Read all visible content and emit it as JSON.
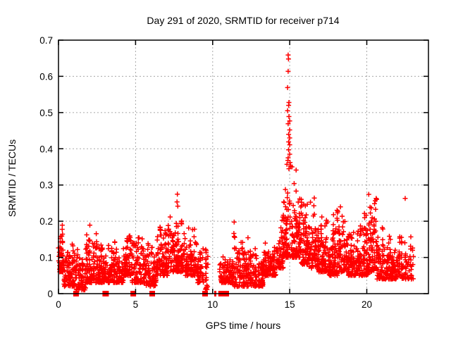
{
  "chart_data": {
    "type": "scatter",
    "title": "Day 291 of 2020, SRMTID for receiver p714",
    "xlabel": "GPS time / hours",
    "ylabel": "SRMTID / TECUs",
    "xlim": [
      0,
      24
    ],
    "ylim": [
      0,
      0.7
    ],
    "xticks": [
      0,
      5,
      10,
      15,
      20
    ],
    "yticks": [
      0,
      0.1,
      0.2,
      0.3,
      0.4,
      0.5,
      0.6,
      0.7
    ],
    "grid": true,
    "legend": "none",
    "marker": "plus",
    "marker_color": "#ff0000",
    "grid_color": "#a8a8a8",
    "axis_color": "#000000",
    "background": "#ffffff",
    "seed": 42,
    "skew": 1.6,
    "bands": [
      [
        0.0,
        0.35,
        55,
        0.06,
        0.22
      ],
      [
        0.35,
        1.15,
        95,
        0.02,
        0.16
      ],
      [
        1.15,
        1.75,
        70,
        0.01,
        0.13
      ],
      [
        1.75,
        2.65,
        115,
        0.03,
        0.2
      ],
      [
        2.65,
        3.45,
        95,
        0.03,
        0.15
      ],
      [
        3.45,
        4.25,
        95,
        0.03,
        0.17
      ],
      [
        4.25,
        4.75,
        70,
        0.05,
        0.22
      ],
      [
        4.75,
        5.65,
        100,
        0.03,
        0.17
      ],
      [
        5.65,
        6.35,
        85,
        0.02,
        0.16
      ],
      [
        6.35,
        7.15,
        105,
        0.05,
        0.21
      ],
      [
        7.15,
        8.15,
        120,
        0.06,
        0.29
      ],
      [
        8.15,
        8.95,
        95,
        0.05,
        0.21
      ],
      [
        8.95,
        9.4,
        50,
        0.03,
        0.17
      ],
      [
        9.5,
        9.72,
        22,
        0.01,
        0.21
      ],
      [
        10.45,
        11.3,
        95,
        0.03,
        0.13
      ],
      [
        11.3,
        12.3,
        115,
        0.02,
        0.21
      ],
      [
        12.3,
        13.3,
        115,
        0.02,
        0.14
      ],
      [
        13.3,
        14.1,
        100,
        0.05,
        0.16
      ],
      [
        14.1,
        14.6,
        60,
        0.07,
        0.24
      ],
      [
        14.55,
        15.15,
        70,
        0.1,
        0.35
      ],
      [
        15.15,
        15.75,
        95,
        0.1,
        0.36
      ],
      [
        15.75,
        16.25,
        80,
        0.08,
        0.33
      ],
      [
        16.25,
        16.85,
        80,
        0.07,
        0.3
      ],
      [
        16.85,
        17.55,
        90,
        0.06,
        0.24
      ],
      [
        17.55,
        18.2,
        90,
        0.05,
        0.28
      ],
      [
        18.2,
        18.75,
        70,
        0.06,
        0.31
      ],
      [
        18.75,
        19.55,
        95,
        0.05,
        0.2
      ],
      [
        19.55,
        20.1,
        80,
        0.05,
        0.29
      ],
      [
        20.1,
        20.65,
        75,
        0.06,
        0.345
      ],
      [
        20.65,
        21.45,
        95,
        0.04,
        0.2
      ],
      [
        21.45,
        22.25,
        95,
        0.04,
        0.16
      ],
      [
        22.25,
        23.02,
        60,
        0.04,
        0.17
      ]
    ],
    "spike_points": [
      [
        14.9,
        0.659
      ],
      [
        14.92,
        0.648
      ],
      [
        14.9,
        0.614
      ],
      [
        14.86,
        0.569
      ],
      [
        14.95,
        0.528
      ],
      [
        14.93,
        0.52
      ],
      [
        14.86,
        0.505
      ],
      [
        14.95,
        0.489
      ],
      [
        15.0,
        0.477
      ],
      [
        14.9,
        0.469
      ],
      [
        15.0,
        0.452
      ],
      [
        14.93,
        0.44
      ],
      [
        15.0,
        0.43
      ],
      [
        14.93,
        0.419
      ],
      [
        15.0,
        0.411
      ],
      [
        14.93,
        0.397
      ],
      [
        15.0,
        0.385
      ],
      [
        14.9,
        0.375
      ],
      [
        14.88,
        0.368
      ],
      [
        15.02,
        0.362
      ],
      [
        14.82,
        0.357
      ],
      [
        15.06,
        0.353
      ],
      [
        15.15,
        0.35
      ],
      [
        14.95,
        0.345
      ]
    ],
    "outlier_points": [
      [
        22.49,
        0.263
      ]
    ],
    "zero_markers": [
      [
        1.14,
        8
      ],
      [
        3.06,
        9
      ],
      [
        4.85,
        8
      ],
      [
        6.08,
        8
      ],
      [
        9.51,
        8
      ],
      [
        10.17,
        3
      ],
      [
        10.55,
        8
      ],
      [
        10.66,
        8
      ],
      [
        10.77,
        8
      ],
      [
        10.88,
        8
      ]
    ]
  }
}
